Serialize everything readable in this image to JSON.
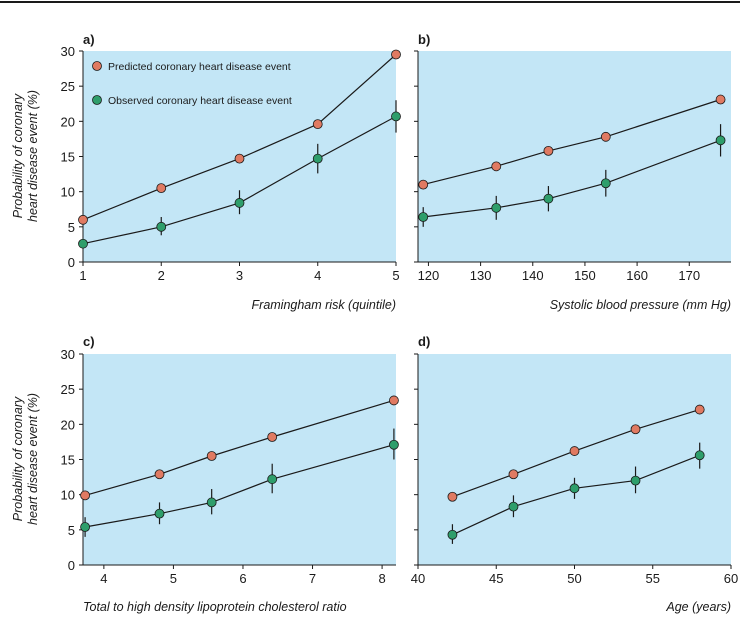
{
  "chart_data": [
    {
      "type": "line",
      "panel": "a)",
      "xlabel": "Framingham risk (quintile)",
      "ylabel": "Probability of coronary heart disease event (%)",
      "xlim": [
        1,
        5
      ],
      "ylim": [
        0,
        30
      ],
      "xticks": [
        1,
        2,
        3,
        4,
        5
      ],
      "yticks": [
        0,
        5,
        10,
        15,
        20,
        25,
        30
      ],
      "legend": "top-left",
      "series": [
        {
          "name": "Predicted coronary heart disease event",
          "color": "#e07a62",
          "x": [
            1,
            2,
            3,
            4,
            5
          ],
          "y": [
            6.0,
            10.5,
            14.7,
            19.6,
            29.5
          ]
        },
        {
          "name": "Observed coronary heart disease event",
          "color": "#2e9e6b",
          "x": [
            1,
            2,
            3,
            4,
            5
          ],
          "y": [
            2.6,
            5.0,
            8.4,
            14.7,
            20.7
          ],
          "err_low": [
            2.1,
            3.8,
            6.8,
            12.6,
            18.4
          ],
          "err_high": [
            3.2,
            6.4,
            10.2,
            16.8,
            23.0
          ]
        }
      ]
    },
    {
      "type": "line",
      "panel": "b)",
      "xlabel": "Systolic blood pressure (mm Hg)",
      "ylabel": "",
      "xlim": [
        118,
        178
      ],
      "ylim": [
        0,
        30
      ],
      "xticks": [
        120,
        130,
        140,
        150,
        160,
        170
      ],
      "yticks": [
        0,
        5,
        10,
        15,
        20,
        25,
        30
      ],
      "series": [
        {
          "name": "Predicted coronary heart disease event",
          "color": "#e07a62",
          "x": [
            119,
            133,
            143,
            154,
            176
          ],
          "y": [
            11.0,
            13.6,
            15.8,
            17.8,
            23.1
          ]
        },
        {
          "name": "Observed coronary heart disease event",
          "color": "#2e9e6b",
          "x": [
            119,
            133,
            143,
            154,
            176
          ],
          "y": [
            6.4,
            7.7,
            9.0,
            11.2,
            17.3
          ],
          "err_low": [
            5.0,
            6.0,
            7.2,
            9.3,
            15.0
          ],
          "err_high": [
            7.8,
            9.4,
            10.8,
            13.1,
            19.6
          ]
        }
      ]
    },
    {
      "type": "line",
      "panel": "c)",
      "xlabel": "Total to high density lipoprotein cholesterol ratio",
      "ylabel": "Probability of coronary heart disease event (%)",
      "xlim": [
        3.7,
        8.2
      ],
      "ylim": [
        0,
        30
      ],
      "xticks": [
        4,
        5,
        6,
        7,
        8
      ],
      "yticks": [
        0,
        5,
        10,
        15,
        20,
        25,
        30
      ],
      "series": [
        {
          "name": "Predicted coronary heart disease event",
          "color": "#e07a62",
          "x": [
            3.73,
            4.8,
            5.55,
            6.42,
            8.17
          ],
          "y": [
            9.9,
            12.9,
            15.5,
            18.2,
            23.4
          ]
        },
        {
          "name": "Observed coronary heart disease event",
          "color": "#2e9e6b",
          "x": [
            3.73,
            4.8,
            5.55,
            6.42,
            8.17
          ],
          "y": [
            5.4,
            7.3,
            8.9,
            12.2,
            17.1
          ],
          "err_low": [
            4.0,
            5.8,
            7.2,
            10.2,
            15.0
          ],
          "err_high": [
            6.8,
            8.9,
            10.8,
            14.4,
            19.4
          ]
        }
      ]
    },
    {
      "type": "line",
      "panel": "d)",
      "xlabel": "Age (years)",
      "ylabel": "",
      "xlim": [
        40,
        60
      ],
      "ylim": [
        0,
        30
      ],
      "xticks": [
        40,
        45,
        50,
        55,
        60
      ],
      "yticks": [
        0,
        5,
        10,
        15,
        20,
        25,
        30
      ],
      "series": [
        {
          "name": "Predicted coronary heart disease event",
          "color": "#e07a62",
          "x": [
            42.2,
            46.1,
            50.0,
            53.9,
            58.0
          ],
          "y": [
            9.7,
            12.9,
            16.2,
            19.3,
            22.1
          ]
        },
        {
          "name": "Observed coronary heart disease event",
          "color": "#2e9e6b",
          "x": [
            42.2,
            46.1,
            50.0,
            53.9,
            58.0
          ],
          "y": [
            4.3,
            8.3,
            10.9,
            12.0,
            15.6
          ],
          "err_low": [
            3.0,
            6.8,
            9.4,
            10.2,
            13.7
          ],
          "err_high": [
            5.8,
            9.9,
            12.4,
            14.0,
            17.4
          ]
        }
      ]
    }
  ]
}
